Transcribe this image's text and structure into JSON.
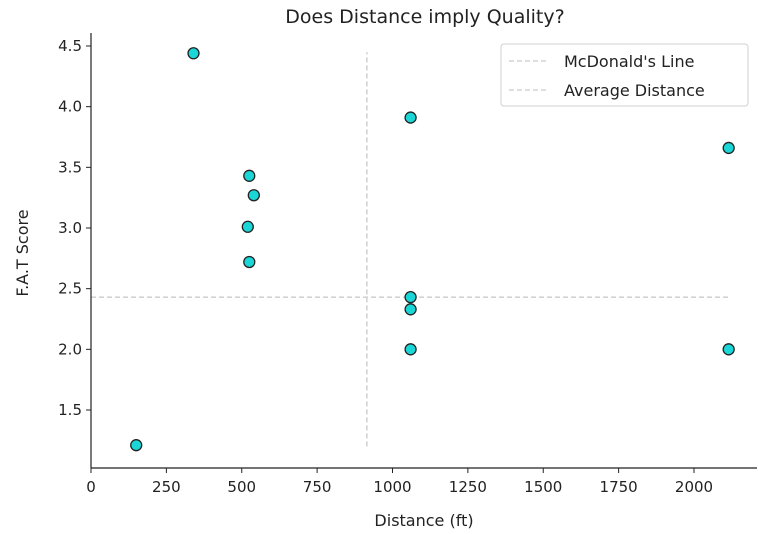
{
  "chart_data": {
    "type": "scatter",
    "title": "Does Distance imply Quality?",
    "xlabel": "Distance (ft)",
    "ylabel": "F.A.T Score",
    "xlim": [
      0,
      2200
    ],
    "ylim": [
      1.05,
      4.62
    ],
    "xticks": [
      0,
      250,
      500,
      750,
      1000,
      1250,
      1500,
      1750,
      2000
    ],
    "yticks": [
      1.5,
      2.0,
      2.5,
      3.0,
      3.5,
      4.0,
      4.5
    ],
    "xtick_labels": [
      "0",
      "250",
      "500",
      "750",
      "1000",
      "1250",
      "1500",
      "1750",
      "2000"
    ],
    "ytick_labels": [
      "1.5",
      "2.0",
      "2.5",
      "3.0",
      "3.5",
      "4.0",
      "4.5"
    ],
    "grid": false,
    "legend_position": "top-right",
    "series": [
      {
        "marker_color": "#1ad6d6",
        "edge_color": "#222222",
        "points": [
          {
            "x": 340,
            "y": 4.44
          },
          {
            "x": 525,
            "y": 3.43
          },
          {
            "x": 540,
            "y": 3.27
          },
          {
            "x": 520,
            "y": 3.01
          },
          {
            "x": 525,
            "y": 2.72
          },
          {
            "x": 150,
            "y": 1.21
          },
          {
            "x": 1060,
            "y": 3.91
          },
          {
            "x": 1060,
            "y": 2.43
          },
          {
            "x": 1060,
            "y": 2.33
          },
          {
            "x": 1060,
            "y": 2.0
          },
          {
            "x": 2115,
            "y": 3.66
          },
          {
            "x": 2115,
            "y": 2.0
          }
        ]
      }
    ],
    "reference_lines": [
      {
        "name": "McDonald's Line",
        "orientation": "horizontal",
        "value": 2.43,
        "from": 0,
        "to": 2115,
        "color": "#d3d3d3",
        "style": "dashed"
      },
      {
        "name": "Average Distance",
        "orientation": "vertical",
        "value": 915,
        "from": 1.2,
        "to": 4.45,
        "color": "#d3d3d3",
        "style": "dashed"
      }
    ],
    "legend": [
      "McDonald's Line",
      "Average Distance"
    ]
  }
}
